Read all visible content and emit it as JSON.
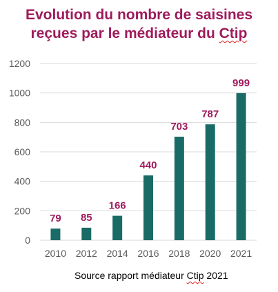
{
  "title": {
    "line1": "Evolution du nombre de saisines",
    "line2_prefix": "reçues par le médiateur du ",
    "line2_word": "Ctip"
  },
  "source": {
    "prefix": "Source rapport médiateur ",
    "word": "Ctip",
    "suffix": " 2021"
  },
  "colors": {
    "bar": "#1a6b66",
    "label": "#9e1b5c",
    "title": "#9e1b5c",
    "grid": "#d9d9d9",
    "axis_text": "#595959"
  },
  "chart_data": {
    "type": "bar",
    "categories": [
      "2010",
      "2012",
      "2014",
      "2016",
      "2018",
      "2020",
      "2021"
    ],
    "values": [
      79,
      85,
      166,
      440,
      703,
      787,
      999
    ],
    "data_labels": [
      "79",
      "85",
      "166",
      "440",
      "703",
      "787",
      "999"
    ],
    "ylim": [
      0,
      1200
    ],
    "yticks": [
      "0",
      "200",
      "400",
      "600",
      "800",
      "1000",
      "1200"
    ],
    "grid": true,
    "legend": "none"
  }
}
